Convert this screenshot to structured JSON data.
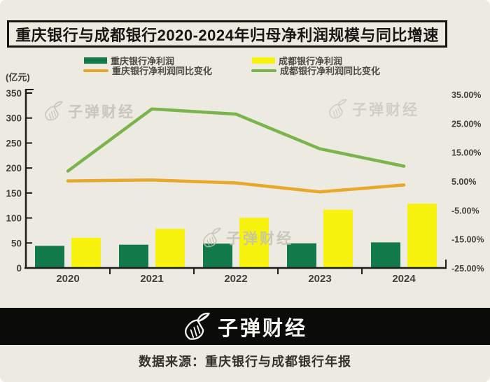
{
  "title": "重庆银行与成都银行2020-2024年归母净利润规模与同比增速",
  "watermark_text": "子弹财经",
  "footer": {
    "logo_text": "子弹财经",
    "source_text": "数据来源：重庆银行与成都银行年报"
  },
  "colors": {
    "background": "#edeae2",
    "banner_background": "#0b0b09",
    "chongqing_bar_green": "#11794a",
    "chengdu_bar_yellow": "#f7f30e",
    "chongqing_line_orange": "#e8a82a",
    "chengdu_line_green": "#7cb44c",
    "axis_ink": "#1c1c1a",
    "watermark_gray": "#c3c0b6"
  },
  "chart_data": {
    "type": "bar",
    "subtype": "grouped bars + two lines (dual axis combo)",
    "categories": [
      "2020",
      "2021",
      "2022",
      "2023",
      "2024"
    ],
    "bar_series": [
      {
        "name": "重庆银行净利润",
        "axis": "left",
        "unit": "亿元",
        "color": "#11794a",
        "values": [
          44.2,
          46.6,
          48.7,
          49.3,
          51.2
        ]
      },
      {
        "name": "成都银行净利润",
        "axis": "left",
        "unit": "亿元",
        "color": "#f7f30e",
        "values": [
          60.3,
          78.3,
          100.4,
          116.7,
          128.6
        ]
      }
    ],
    "line_series": [
      {
        "name": "重庆银行净利润同比变化",
        "axis": "right",
        "unit": "%",
        "color": "#e8a82a",
        "values": [
          5.1,
          5.4,
          4.4,
          1.3,
          3.7
        ]
      },
      {
        "name": "成都银行净利润同比变化",
        "axis": "right",
        "unit": "%",
        "color": "#7cb44c",
        "values": [
          8.5,
          30.0,
          28.2,
          16.2,
          10.2
        ]
      }
    ],
    "left_axis": {
      "label": "(亿元)",
      "min": 0,
      "max": 350,
      "step": 50,
      "tick_labels": [
        "350",
        "300",
        "250",
        "200",
        "150",
        "100",
        "50",
        "0"
      ]
    },
    "right_axis": {
      "min": -25,
      "max": 35,
      "step": 10,
      "tick_labels": [
        "35.00%",
        "25.00%",
        "15.00%",
        "5.00%",
        "-5.00%",
        "-15.00%",
        "-25.00%"
      ]
    },
    "grid": false,
    "legend_position": "top"
  }
}
